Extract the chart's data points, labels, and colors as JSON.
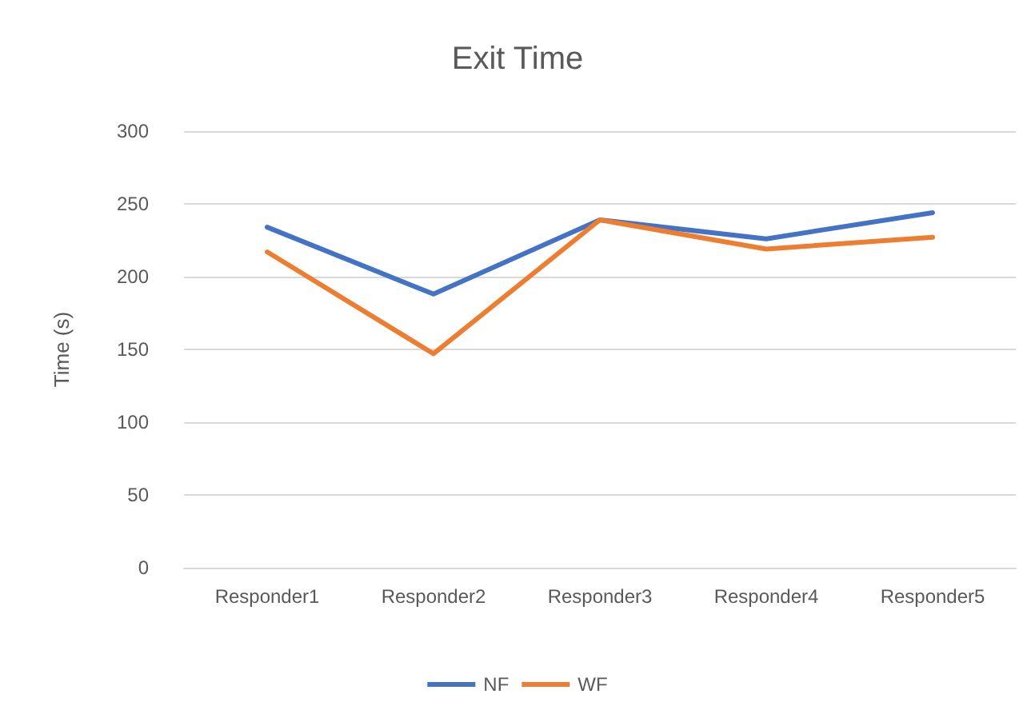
{
  "chart_data": {
    "type": "line",
    "title": "Exit Time",
    "ylabel": "Time (s)",
    "categories": [
      "Responder1",
      "Responder2",
      "Responder3",
      "Responder4",
      "Responder5"
    ],
    "series": [
      {
        "name": "NF",
        "color": "#4472c4",
        "values": [
          234,
          188,
          239,
          226,
          244
        ]
      },
      {
        "name": "WF",
        "color": "#ed7d31",
        "values": [
          217,
          147,
          239,
          219,
          227
        ]
      }
    ],
    "ylim": [
      0,
      300
    ],
    "yticks": [
      0,
      50,
      100,
      150,
      200,
      250,
      300
    ],
    "grid": "y",
    "legend": "bottom",
    "marker": "none",
    "line_style": "solid"
  }
}
